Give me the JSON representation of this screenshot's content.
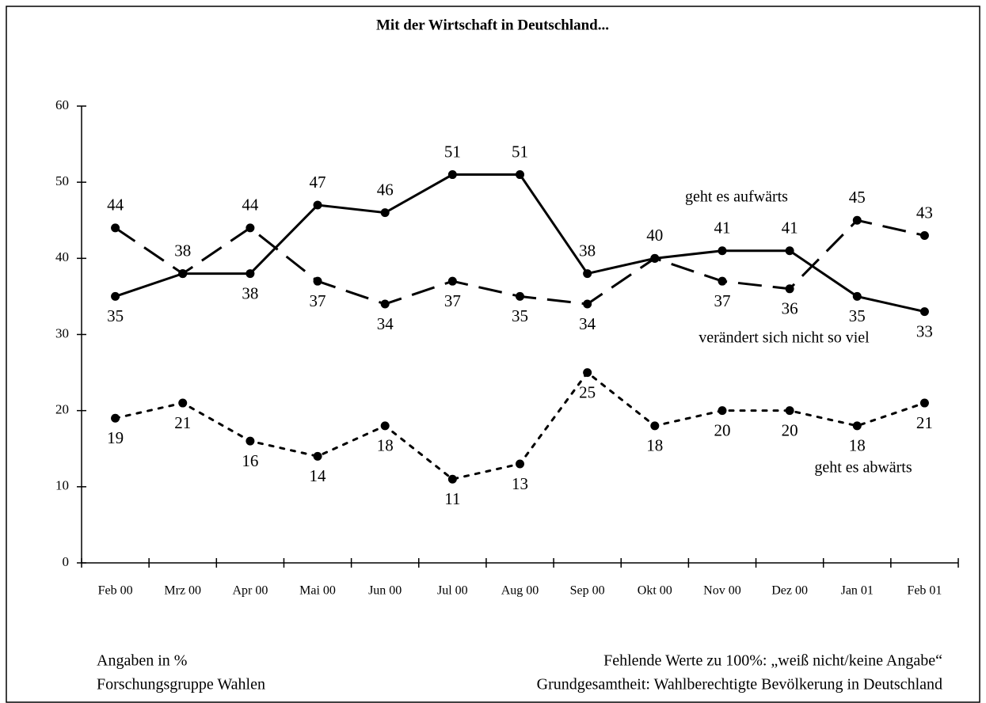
{
  "chart_data": {
    "type": "line",
    "title": "Mit der Wirtschaft in Deutschland...",
    "categories": [
      "Feb 00",
      "Mrz 00",
      "Apr 00",
      "Mai 00",
      "Jun 00",
      "Jul 00",
      "Aug 00",
      "Sep 00",
      "Okt 00",
      "Nov 00",
      "Dez 00",
      "Jan 01",
      "Feb 01"
    ],
    "series": [
      {
        "name": "geht es aufwärts",
        "color": "#000000",
        "style": "solid",
        "values": [
          35,
          38,
          38,
          47,
          46,
          51,
          51,
          38,
          40,
          41,
          41,
          35,
          33
        ]
      },
      {
        "name": "verändert sich nicht so viel",
        "color": "#000000",
        "style": "dashed",
        "values": [
          44,
          38,
          44,
          37,
          34,
          37,
          35,
          34,
          40,
          37,
          36,
          45,
          43
        ]
      },
      {
        "name": "geht es abwärts",
        "color": "#000000",
        "style": "dotted",
        "values": [
          19,
          21,
          16,
          14,
          18,
          11,
          13,
          25,
          18,
          20,
          20,
          18,
          21
        ]
      }
    ],
    "ylim": [
      0,
      60
    ],
    "yticks": [
      0,
      10,
      20,
      30,
      40,
      50,
      60
    ],
    "grid": false,
    "notes": [
      "Angaben in %",
      "Forschungsgruppe Wahlen",
      "Fehlende Werte zu 100%: „weiß nicht/keine Angabe“",
      "Grundgesamtheit: Wahlberechtigte Bevölkerung in Deutschland"
    ]
  }
}
